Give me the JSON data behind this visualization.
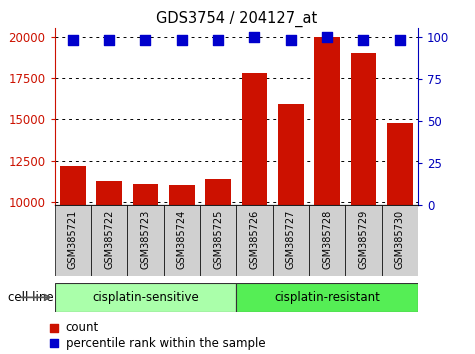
{
  "title": "GDS3754 / 204127_at",
  "samples": [
    "GSM385721",
    "GSM385722",
    "GSM385723",
    "GSM385724",
    "GSM385725",
    "GSM385726",
    "GSM385727",
    "GSM385728",
    "GSM385729",
    "GSM385730"
  ],
  "counts": [
    12200,
    11300,
    11100,
    11050,
    11400,
    17800,
    15900,
    20000,
    19000,
    14800
  ],
  "percentile_ranks": [
    98,
    98,
    98,
    98,
    98,
    100,
    98,
    100,
    98,
    98
  ],
  "groups": [
    "cisplatin-sensitive",
    "cisplatin-sensitive",
    "cisplatin-sensitive",
    "cisplatin-sensitive",
    "cisplatin-sensitive",
    "cisplatin-resistant",
    "cisplatin-resistant",
    "cisplatin-resistant",
    "cisplatin-resistant",
    "cisplatin-resistant"
  ],
  "group_colors": {
    "cisplatin-sensitive": "#aaffaa",
    "cisplatin-resistant": "#55ee55"
  },
  "bar_color": "#cc1100",
  "dot_color": "#0000cc",
  "ylim_left": [
    9800,
    20500
  ],
  "yticks_left": [
    10000,
    12500,
    15000,
    17500,
    20000
  ],
  "ylim_right": [
    0,
    105
  ],
  "yticks_right": [
    0,
    25,
    50,
    75,
    100
  ],
  "bar_width": 0.7,
  "cell_line_label": "cell line",
  "legend_count": "count",
  "legend_percentile": "percentile rank within the sample",
  "dot_size": 55,
  "xlabel_color": "#cc1100",
  "ylabel_right_color": "#0000bb"
}
